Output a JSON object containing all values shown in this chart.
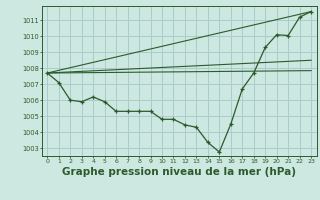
{
  "background_color": "#cce8e0",
  "grid_color": "#aacccc",
  "line_color": "#2d5a2d",
  "title": "Graphe pression niveau de la mer (hPa)",
  "title_fontsize": 7.5,
  "ylabel_values": [
    1003,
    1004,
    1005,
    1006,
    1007,
    1008,
    1009,
    1010,
    1011
  ],
  "ylim": [
    1002.5,
    1011.9
  ],
  "xlim": [
    -0.5,
    23.5
  ],
  "xticks": [
    0,
    1,
    2,
    3,
    4,
    5,
    6,
    7,
    8,
    9,
    10,
    11,
    12,
    13,
    14,
    15,
    16,
    17,
    18,
    19,
    20,
    21,
    22,
    23
  ],
  "main_series": {
    "x": [
      0,
      1,
      2,
      3,
      4,
      5,
      6,
      7,
      8,
      9,
      10,
      11,
      12,
      13,
      14,
      15,
      16,
      17,
      18,
      19,
      20,
      21,
      22,
      23
    ],
    "y": [
      1007.7,
      1007.1,
      1006.0,
      1005.9,
      1006.2,
      1005.9,
      1005.3,
      1005.3,
      1005.3,
      1005.3,
      1004.8,
      1004.8,
      1004.45,
      1004.3,
      1003.35,
      1002.75,
      1004.5,
      1006.7,
      1007.7,
      1009.3,
      1010.1,
      1010.05,
      1011.2,
      1011.55
    ]
  },
  "trend_lines": [
    {
      "x": [
        0,
        23
      ],
      "y": [
        1007.7,
        1011.55
      ]
    },
    {
      "x": [
        0,
        23
      ],
      "y": [
        1007.7,
        1008.5
      ]
    },
    {
      "x": [
        0,
        23
      ],
      "y": [
        1007.7,
        1007.85
      ]
    }
  ]
}
